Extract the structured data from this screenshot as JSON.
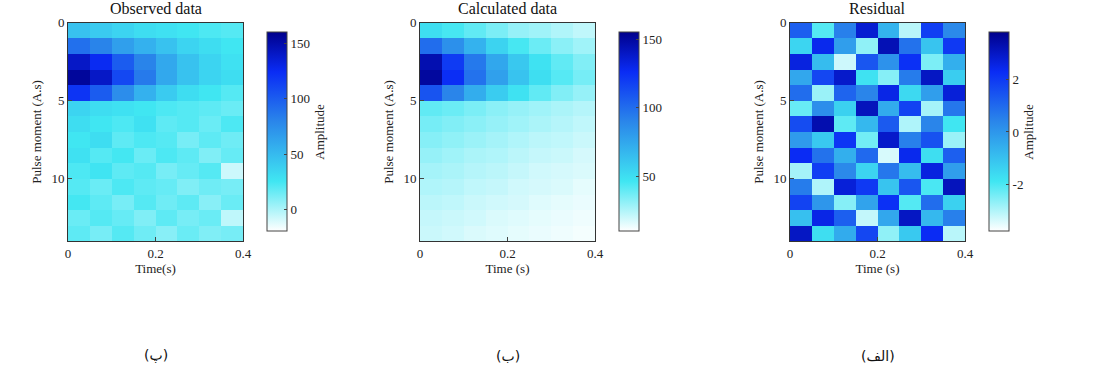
{
  "chart_data": [
    {
      "type": "heatmap",
      "title": "Observed data",
      "x_label": "Time(s)",
      "y_label": "Pulse moment (A.s)",
      "caption": "(پ)",
      "x": [
        0.025,
        0.075,
        0.125,
        0.175,
        0.225,
        0.275,
        0.325,
        0.375
      ],
      "y": [
        0.5,
        1.5,
        2.5,
        3.5,
        4.5,
        5.5,
        6.5,
        7.5,
        8.5,
        9.5,
        10.5,
        11.5,
        12.5,
        13.5
      ],
      "xlim": [
        0,
        0.4
      ],
      "xticks": [
        0,
        0.2,
        0.4
      ],
      "ylim": [
        14,
        0
      ],
      "yticks": [
        0,
        5,
        10
      ],
      "cells": [
        [
          45,
          40,
          35,
          30,
          28,
          25,
          22,
          20
        ],
        [
          90,
          80,
          65,
          55,
          45,
          35,
          30,
          25
        ],
        [
          140,
          125,
          100,
          80,
          60,
          45,
          35,
          28
        ],
        [
          155,
          140,
          110,
          85,
          60,
          45,
          35,
          30
        ],
        [
          120,
          100,
          75,
          55,
          40,
          30,
          25,
          20
        ],
        [
          35,
          30,
          28,
          25,
          22,
          20,
          18,
          15
        ],
        [
          30,
          25,
          22,
          28,
          18,
          20,
          15,
          22
        ],
        [
          25,
          30,
          18,
          22,
          20,
          12,
          18,
          14
        ],
        [
          28,
          20,
          24,
          15,
          22,
          18,
          10,
          16
        ],
        [
          22,
          26,
          18,
          20,
          12,
          16,
          20,
          -8
        ],
        [
          20,
          15,
          22,
          18,
          16,
          10,
          14,
          12
        ],
        [
          24,
          18,
          12,
          20,
          14,
          18,
          8,
          15
        ],
        [
          15,
          20,
          16,
          10,
          18,
          12,
          15,
          -5
        ],
        [
          18,
          12,
          20,
          14,
          8,
          15,
          10,
          12
        ]
      ],
      "colorbar_range": [
        -20,
        160
      ],
      "colorbar_ticks": [
        0,
        50,
        100,
        150
      ],
      "colorbar_title": "Amplitude"
    },
    {
      "type": "heatmap",
      "title": "Calculated data",
      "x_label": "Time (s)",
      "y_label": "Pulse moment (A.s)",
      "caption": "(ب)",
      "x": [
        0.025,
        0.075,
        0.125,
        0.175,
        0.225,
        0.275,
        0.325,
        0.375
      ],
      "y": [
        0.5,
        1.5,
        2.5,
        3.5,
        4.5,
        5.5,
        6.5,
        7.5,
        8.5,
        9.5,
        10.5,
        11.5,
        12.5,
        13.5
      ],
      "xlim": [
        0,
        0.4
      ],
      "xticks": [
        0,
        0.2,
        0.4
      ],
      "ylim": [
        14,
        0
      ],
      "yticks": [
        0,
        5,
        10
      ],
      "cells": [
        [
          50,
          45,
          40,
          35,
          30,
          28,
          25,
          22
        ],
        [
          100,
          85,
          70,
          55,
          45,
          38,
          32,
          28
        ],
        [
          145,
          120,
          95,
          75,
          60,
          48,
          40,
          34
        ],
        [
          150,
          125,
          98,
          78,
          62,
          50,
          42,
          36
        ],
        [
          110,
          90,
          72,
          58,
          48,
          40,
          34,
          30
        ],
        [
          40,
          38,
          35,
          32,
          30,
          28,
          26,
          24
        ],
        [
          36,
          34,
          32,
          30,
          28,
          26,
          24,
          22
        ],
        [
          33,
          31,
          29,
          27,
          25,
          23,
          22,
          20
        ],
        [
          30,
          28,
          26,
          25,
          23,
          21,
          20,
          18
        ],
        [
          27,
          26,
          24,
          23,
          21,
          19,
          18,
          17
        ],
        [
          25,
          24,
          22,
          21,
          19,
          18,
          17,
          15
        ],
        [
          23,
          22,
          20,
          19,
          18,
          16,
          15,
          14
        ],
        [
          21,
          20,
          19,
          17,
          16,
          15,
          14,
          13
        ],
        [
          20,
          19,
          17,
          16,
          15,
          14,
          13,
          12
        ]
      ],
      "colorbar_range": [
        10,
        155
      ],
      "colorbar_ticks": [
        50,
        100,
        150
      ]
    },
    {
      "type": "heatmap",
      "title": "Residual",
      "x_label": "Time (s)",
      "y_label": "Pulse moment (A.s)",
      "caption": "(الف)",
      "x": [
        0.025,
        0.075,
        0.125,
        0.175,
        0.225,
        0.275,
        0.325,
        0.375
      ],
      "y": [
        0.5,
        1.5,
        2.5,
        3.5,
        4.5,
        5.5,
        6.5,
        7.5,
        8.5,
        9.5,
        10.5,
        11.5,
        12.5,
        13.5
      ],
      "xlim": [
        0,
        0.4
      ],
      "xticks": [
        0,
        0.2,
        0.4
      ],
      "ylim": [
        14,
        0
      ],
      "yticks": [
        0,
        5,
        10
      ],
      "cells": [
        [
          1.2,
          -2.1,
          0.5,
          2.8,
          -0.7,
          -3.1,
          1.9,
          0.3
        ],
        [
          -1.5,
          2.4,
          -0.2,
          -2.7,
          3.2,
          0.8,
          -1.1,
          2.0
        ],
        [
          2.6,
          -0.9,
          -3.3,
          1.4,
          0.1,
          2.2,
          -2.5,
          -0.6
        ],
        [
          -0.4,
          1.7,
          2.9,
          -1.8,
          -2.6,
          0.6,
          3.0,
          -1.3
        ],
        [
          0.9,
          -2.8,
          1.1,
          0.4,
          2.5,
          -1.6,
          -0.2,
          2.7
        ],
        [
          -2.3,
          0.2,
          -1.4,
          3.1,
          -0.5,
          1.8,
          -2.9,
          0.7
        ],
        [
          1.6,
          3.3,
          -2.2,
          -0.8,
          1.3,
          -3.0,
          0.4,
          -1.9
        ],
        [
          -0.1,
          -1.2,
          2.1,
          -2.4,
          2.9,
          0.5,
          1.5,
          -2.8
        ],
        [
          2.3,
          0.8,
          -0.6,
          1.0,
          -3.4,
          2.4,
          -1.7,
          1.2
        ],
        [
          -2.9,
          1.9,
          0.3,
          -1.5,
          0.7,
          -0.9,
          2.6,
          -0.2
        ],
        [
          0.6,
          -3.0,
          2.7,
          2.0,
          -1.1,
          1.4,
          -2.0,
          3.1
        ],
        [
          1.8,
          0.0,
          -2.6,
          -0.3,
          2.2,
          -2.1,
          0.9,
          -1.4
        ],
        [
          -1.0,
          2.5,
          1.2,
          -3.2,
          -0.4,
          3.0,
          -0.8,
          0.5
        ],
        [
          3.0,
          -1.7,
          -0.5,
          1.7,
          -2.7,
          -1.2,
          2.3,
          -3.1
        ]
      ],
      "colorbar_range": [
        -3.8,
        3.8
      ],
      "colorbar_ticks": [
        -2,
        0,
        2
      ],
      "colorbar_title": "Amplitude"
    }
  ]
}
